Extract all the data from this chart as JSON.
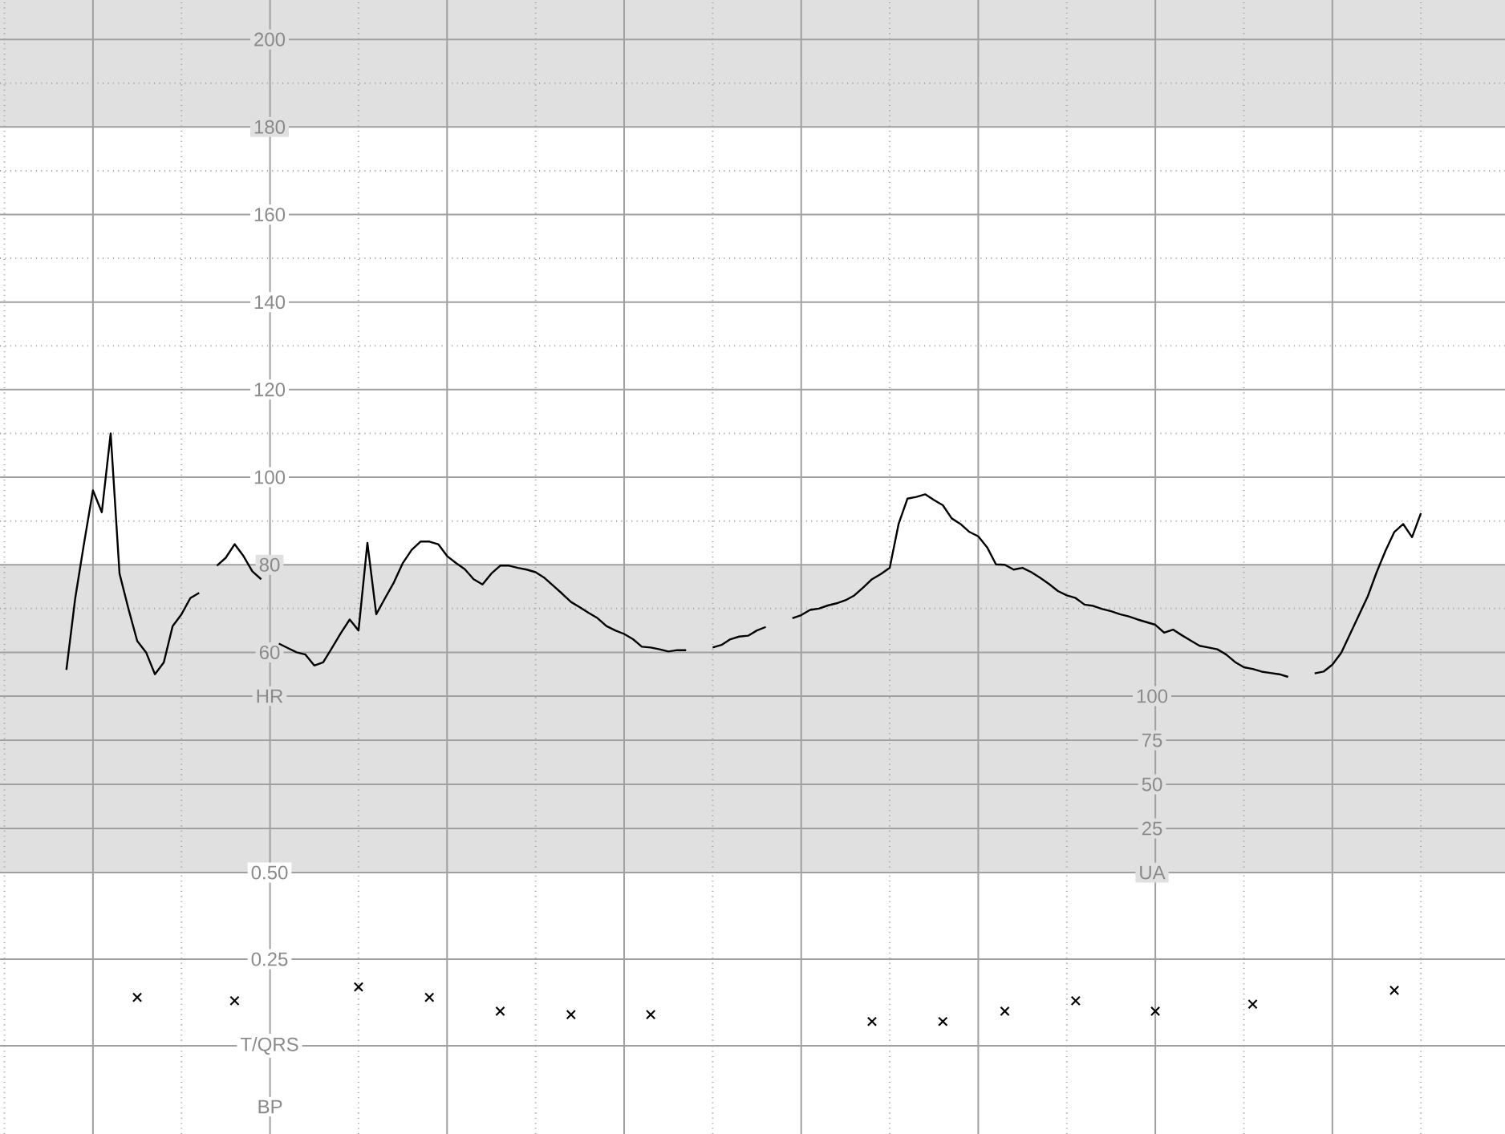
{
  "chart_data": [
    {
      "type": "line",
      "grid": true,
      "tick_labels": "y",
      "color": "#000000",
      "categories": [
        null,
        null,
        null,
        null,
        null,
        null,
        null,
        null,
        null,
        null,
        null,
        null,
        null,
        null,
        null,
        null,
        null,
        null,
        null,
        null,
        null,
        null,
        null,
        null,
        null,
        null,
        null,
        null,
        null,
        null,
        null,
        null,
        null,
        null,
        null,
        null,
        null,
        null,
        null,
        null,
        null,
        null,
        null,
        null,
        null,
        null,
        null,
        null,
        null,
        null,
        null,
        null,
        null,
        null,
        null,
        null,
        null,
        null,
        null,
        null,
        null,
        null,
        null,
        null,
        null,
        null,
        null,
        null,
        null,
        null,
        null,
        null,
        null,
        null,
        null,
        null,
        null,
        null,
        null,
        null,
        null,
        null,
        null,
        null,
        null,
        null,
        null,
        null,
        null,
        null,
        null,
        null,
        null,
        null,
        null,
        null,
        null,
        null,
        null,
        null,
        null,
        null,
        null,
        null,
        null,
        null,
        null,
        null,
        null,
        null,
        null,
        null,
        null,
        null,
        null,
        null,
        null,
        null,
        null,
        null,
        null,
        null,
        null,
        null,
        null,
        null,
        null,
        null,
        null,
        null,
        null,
        null,
        null,
        null,
        null,
        null,
        null,
        null,
        null,
        null,
        null,
        null,
        null,
        null,
        null,
        null,
        null,
        null,
        null,
        null,
        null,
        null,
        null,
        null,
        null,
        null,
        null,
        null,
        null,
        null,
        null,
        null,
        null,
        null,
        null,
        null,
        null,
        null,
        null,
        null
      ],
      "values": [
        null,
        null,
        null,
        null,
        null,
        null,
        null,
        56,
        72.4,
        85,
        97,
        92,
        110,
        78,
        70,
        62.6,
        60,
        55,
        57.7,
        66,
        68.7,
        72.4,
        73.6,
        null,
        79.8,
        81.6,
        84.7,
        82,
        78.5,
        76.7,
        null,
        62,
        61,
        60,
        59.5,
        57,
        57.7,
        61,
        64.4,
        67.5,
        65,
        85,
        68.7,
        72.4,
        76,
        80.4,
        83.4,
        85.3,
        85.3,
        84.7,
        82,
        80.4,
        79,
        76.7,
        75.5,
        78,
        79.8,
        79.8,
        79.3,
        78.9,
        78.3,
        77,
        75.2,
        73.4,
        71.5,
        70.3,
        69,
        67.8,
        66,
        65,
        64.2,
        63,
        61.3,
        61.1,
        60.7,
        60.2,
        60.5,
        60.5,
        null,
        null,
        61.1,
        61.7,
        63,
        63.6,
        63.8,
        65,
        65.8,
        null,
        null,
        67.8,
        68.5,
        69.7,
        70,
        70.7,
        71.2,
        71.9,
        73,
        74.8,
        76.7,
        77.9,
        79.3,
        89.3,
        95.1,
        95.5,
        96.1,
        94.8,
        93.6,
        90.6,
        89.3,
        87.5,
        86.5,
        84,
        80.1,
        80,
        78.9,
        79.3,
        78.3,
        77,
        75.6,
        74,
        73,
        72.4,
        70.9,
        70.6,
        69.9,
        69.4,
        68.7,
        68.2,
        67.5,
        66.9,
        66.3,
        64.5,
        65.2,
        63.9,
        62.7,
        61.5,
        61.1,
        60.7,
        59.5,
        57.8,
        56.6,
        56.2,
        55.6,
        55.3,
        55,
        54.4,
        null,
        null,
        55.2,
        55.6,
        57.2,
        59.9,
        64.2,
        68.5,
        72.8,
        78.3,
        83.2,
        87.5,
        89.3,
        86.3,
        91.8,
        null,
        null,
        null,
        null,
        null,
        null,
        null,
        null,
        null
      ],
      "ylim": [
        50,
        209
      ],
      "yticks": [
        {
          "value": 50,
          "label": "HR"
        },
        60,
        {
          "value": 70,
          "label": null
        },
        80,
        {
          "value": 90,
          "label": null
        },
        100,
        {
          "value": 110,
          "label": null
        },
        120,
        {
          "value": 130,
          "label": null
        },
        140,
        {
          "value": 150,
          "label": null
        },
        160,
        {
          "value": 170,
          "label": null
        },
        180,
        {
          "value": 190,
          "label": null
        },
        200
      ],
      "bands": [
        {
          "axis": "y",
          "from": 180,
          "to": 209,
          "color": "#e0e0e0"
        },
        {
          "axis": "y",
          "from": 50,
          "to": 80,
          "color": "#e0e0e0"
        }
      ]
    },
    {
      "type": "line",
      "grid": true,
      "tick_labels": "y",
      "categories": [
        null,
        null,
        null,
        null,
        null,
        null,
        null,
        null,
        null,
        null,
        null,
        null,
        null,
        null,
        null,
        null,
        null,
        null,
        null,
        null,
        null,
        null,
        null,
        null,
        null,
        null,
        null,
        null,
        null,
        null,
        null,
        null,
        null,
        null,
        null,
        null,
        null,
        null,
        null,
        null,
        null,
        null,
        null,
        null,
        null,
        null,
        null,
        null,
        null,
        null,
        null,
        null,
        null,
        null,
        null,
        null,
        null,
        null,
        null,
        null,
        null,
        null,
        null,
        null,
        null,
        null,
        null,
        null,
        null,
        null,
        null,
        null,
        null,
        null,
        null,
        null,
        null,
        null,
        null,
        null,
        null,
        null,
        null,
        null,
        null,
        null,
        null,
        null,
        null,
        null,
        null,
        null,
        null,
        null,
        null,
        null,
        null,
        null,
        null,
        null,
        null,
        null,
        null,
        null,
        null,
        null,
        null,
        null,
        null,
        null,
        null,
        null,
        null,
        null,
        null,
        null,
        null,
        null,
        null,
        null,
        null,
        null,
        null,
        null,
        null,
        null,
        null,
        null,
        null,
        null,
        null,
        null,
        null,
        null,
        null,
        null,
        null,
        null,
        null,
        null,
        null,
        null,
        null,
        null,
        null,
        null,
        null,
        null,
        null,
        null,
        null,
        null,
        null,
        null,
        null,
        null,
        null,
        null,
        null,
        null,
        null,
        null,
        null,
        null,
        null,
        null,
        null,
        null,
        null,
        null
      ],
      "ylim": [
        0,
        100
      ],
      "yticks": [
        {
          "value": 0,
          "label": "UA"
        },
        25,
        50,
        75,
        100
      ],
      "bands": [
        {
          "axis": "y",
          "from": 0,
          "to": 100,
          "color": "#e0e0e0"
        }
      ]
    },
    {
      "type": "scatter",
      "grid": true,
      "tick_labels": "y",
      "color": "#000000",
      "marker": "cross",
      "categories": [
        null,
        null,
        null,
        null,
        null,
        null,
        null,
        null,
        null,
        null,
        null,
        null,
        null,
        null,
        null,
        null,
        null,
        null,
        null,
        null,
        null,
        null,
        null,
        null,
        null,
        null,
        null,
        null,
        null,
        null,
        null,
        null,
        null,
        null,
        null,
        null,
        null,
        null,
        null,
        null,
        null,
        null,
        null,
        null,
        null,
        null,
        null,
        null,
        null,
        null,
        null,
        null,
        null,
        null,
        null,
        null,
        null,
        null,
        null,
        null,
        null,
        null,
        null,
        null,
        null,
        null,
        null,
        null,
        null,
        null,
        null,
        null,
        null,
        null,
        null,
        null,
        null,
        null,
        null,
        null,
        null,
        null,
        null,
        null,
        null,
        null,
        null,
        null,
        null,
        null,
        null,
        null,
        null,
        null,
        null,
        null,
        null,
        null,
        null,
        null,
        null,
        null,
        null,
        null,
        null,
        null,
        null,
        null,
        null,
        null,
        null,
        null,
        null,
        null,
        null,
        null,
        null,
        null,
        null,
        null,
        null,
        null,
        null,
        null,
        null,
        null,
        null,
        null,
        null,
        null,
        null,
        null,
        null,
        null,
        null,
        null,
        null,
        null,
        null,
        null,
        null,
        null,
        null,
        null,
        null,
        null,
        null,
        null,
        null,
        null,
        null,
        null,
        null,
        null,
        null,
        null,
        null,
        null,
        null,
        null,
        null,
        null,
        null,
        null,
        null,
        null,
        null,
        null,
        null,
        null
      ],
      "values": [
        null,
        null,
        null,
        null,
        null,
        null,
        null,
        null,
        null,
        null,
        null,
        null,
        null,
        null,
        null,
        0.14,
        null,
        null,
        null,
        null,
        null,
        null,
        null,
        null,
        null,
        null,
        0.13,
        null,
        null,
        null,
        null,
        null,
        null,
        null,
        null,
        null,
        null,
        null,
        null,
        null,
        0.17,
        null,
        null,
        null,
        null,
        null,
        null,
        null,
        0.14,
        null,
        null,
        null,
        null,
        null,
        null,
        null,
        0.1,
        null,
        null,
        null,
        null,
        null,
        null,
        null,
        0.09,
        null,
        null,
        null,
        null,
        null,
        null,
        null,
        null,
        0.09,
        null,
        null,
        null,
        null,
        null,
        null,
        null,
        null,
        null,
        null,
        null,
        null,
        null,
        null,
        null,
        null,
        null,
        null,
        null,
        null,
        null,
        null,
        null,
        null,
        0.07,
        null,
        null,
        null,
        null,
        null,
        null,
        null,
        0.07,
        null,
        null,
        null,
        null,
        null,
        null,
        0.1,
        null,
        null,
        null,
        null,
        null,
        null,
        null,
        0.13,
        null,
        null,
        null,
        null,
        null,
        null,
        null,
        null,
        0.1,
        null,
        null,
        null,
        null,
        null,
        null,
        null,
        null,
        null,
        null,
        0.12,
        null,
        null,
        null,
        null,
        null,
        null,
        null,
        null,
        null,
        null,
        null,
        null,
        null,
        null,
        null,
        0.16,
        null,
        null,
        null,
        null,
        null,
        null,
        null,
        null,
        null,
        null,
        null,
        null
      ],
      "ylim": [
        0,
        0.5
      ],
      "yticks": [
        {
          "value": 0,
          "label": "T/QRS"
        },
        0.25,
        {
          "value": 0.5,
          "label": "0.50"
        }
      ]
    },
    {
      "type": "other",
      "categories": [
        null,
        null,
        null,
        null,
        null,
        null,
        null,
        null,
        null,
        null,
        null,
        null,
        null,
        null,
        null,
        null,
        null,
        null,
        null,
        null,
        null,
        null,
        null,
        null,
        null,
        null,
        null,
        null,
        null,
        null,
        null,
        null,
        null,
        null,
        null,
        null,
        null,
        null,
        null,
        null,
        null,
        null,
        null,
        null,
        null,
        null,
        null,
        null,
        null,
        null,
        null,
        null,
        null,
        null,
        null,
        null,
        null,
        null,
        null,
        null,
        null,
        null,
        null,
        null,
        null,
        null,
        null,
        null,
        null,
        null,
        null,
        null,
        null,
        null,
        null,
        null,
        null,
        null,
        null,
        null,
        null,
        null,
        null,
        null,
        null,
        null,
        null,
        null,
        null,
        null,
        null,
        null,
        null,
        null,
        null,
        null,
        null,
        null,
        null,
        null,
        null,
        null,
        null,
        null,
        null,
        null,
        null,
        null,
        null,
        null,
        null,
        null,
        null,
        null,
        null,
        null,
        null,
        null,
        null,
        null,
        null,
        null,
        null,
        null,
        null,
        null,
        null,
        null,
        null,
        null,
        null,
        null,
        null,
        null,
        null,
        null,
        null,
        null,
        null,
        null,
        null,
        null,
        null,
        null,
        null,
        null,
        null,
        null,
        null,
        null,
        null,
        null,
        null,
        null,
        null,
        null,
        null,
        null,
        null,
        null,
        null,
        null,
        null,
        null,
        null,
        null,
        null,
        null,
        null,
        null
      ],
      "annotations": [
        "BP"
      ]
    }
  ]
}
